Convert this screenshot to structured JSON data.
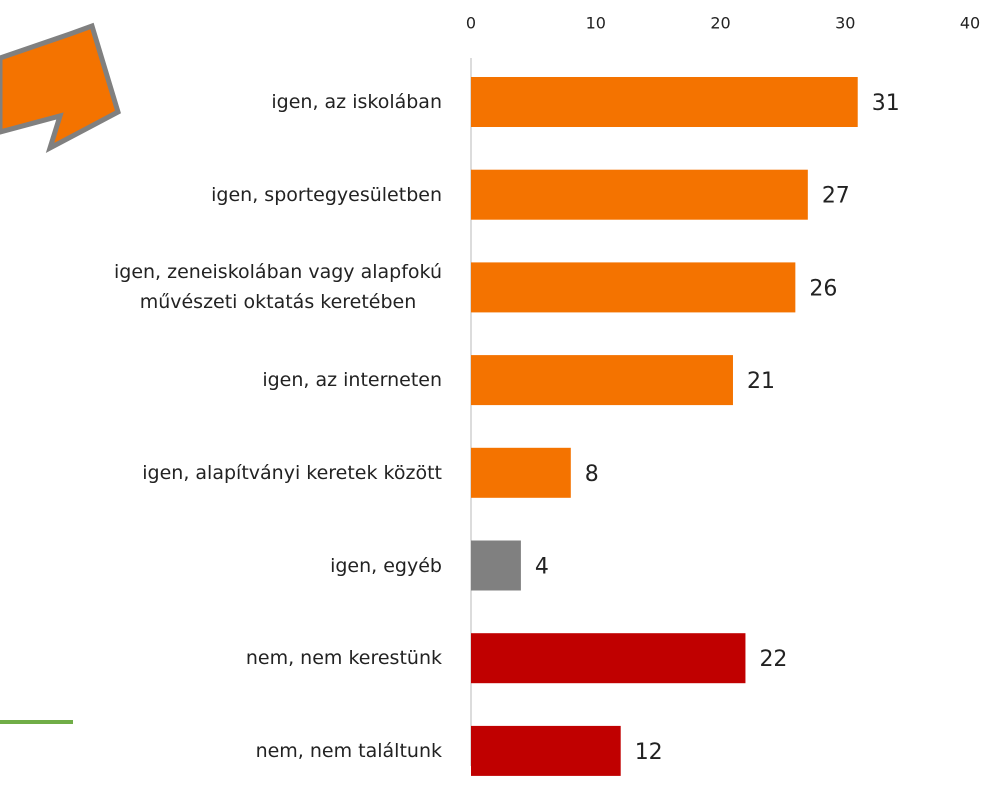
{
  "chart_data": {
    "type": "barh",
    "categories": [
      "igen, az iskolában",
      "igen, sportegyesületben",
      "igen, zeneiskolában vagy alapfokú\nművészeti oktatás keretében",
      "igen, az interneten",
      "igen, alapítványi keretek között",
      "igen, egyéb",
      "nem, nem kerestünk",
      "nem, nem találtunk"
    ],
    "values": [
      31,
      27,
      26,
      21,
      8,
      4,
      22,
      12
    ],
    "colors": [
      "#f47300",
      "#f47300",
      "#f47300",
      "#f47300",
      "#f47300",
      "#808080",
      "#c00000",
      "#c00000"
    ],
    "xlim": [
      0,
      40
    ],
    "xticks": [
      0,
      10,
      20,
      30,
      40
    ],
    "grid": false
  }
}
